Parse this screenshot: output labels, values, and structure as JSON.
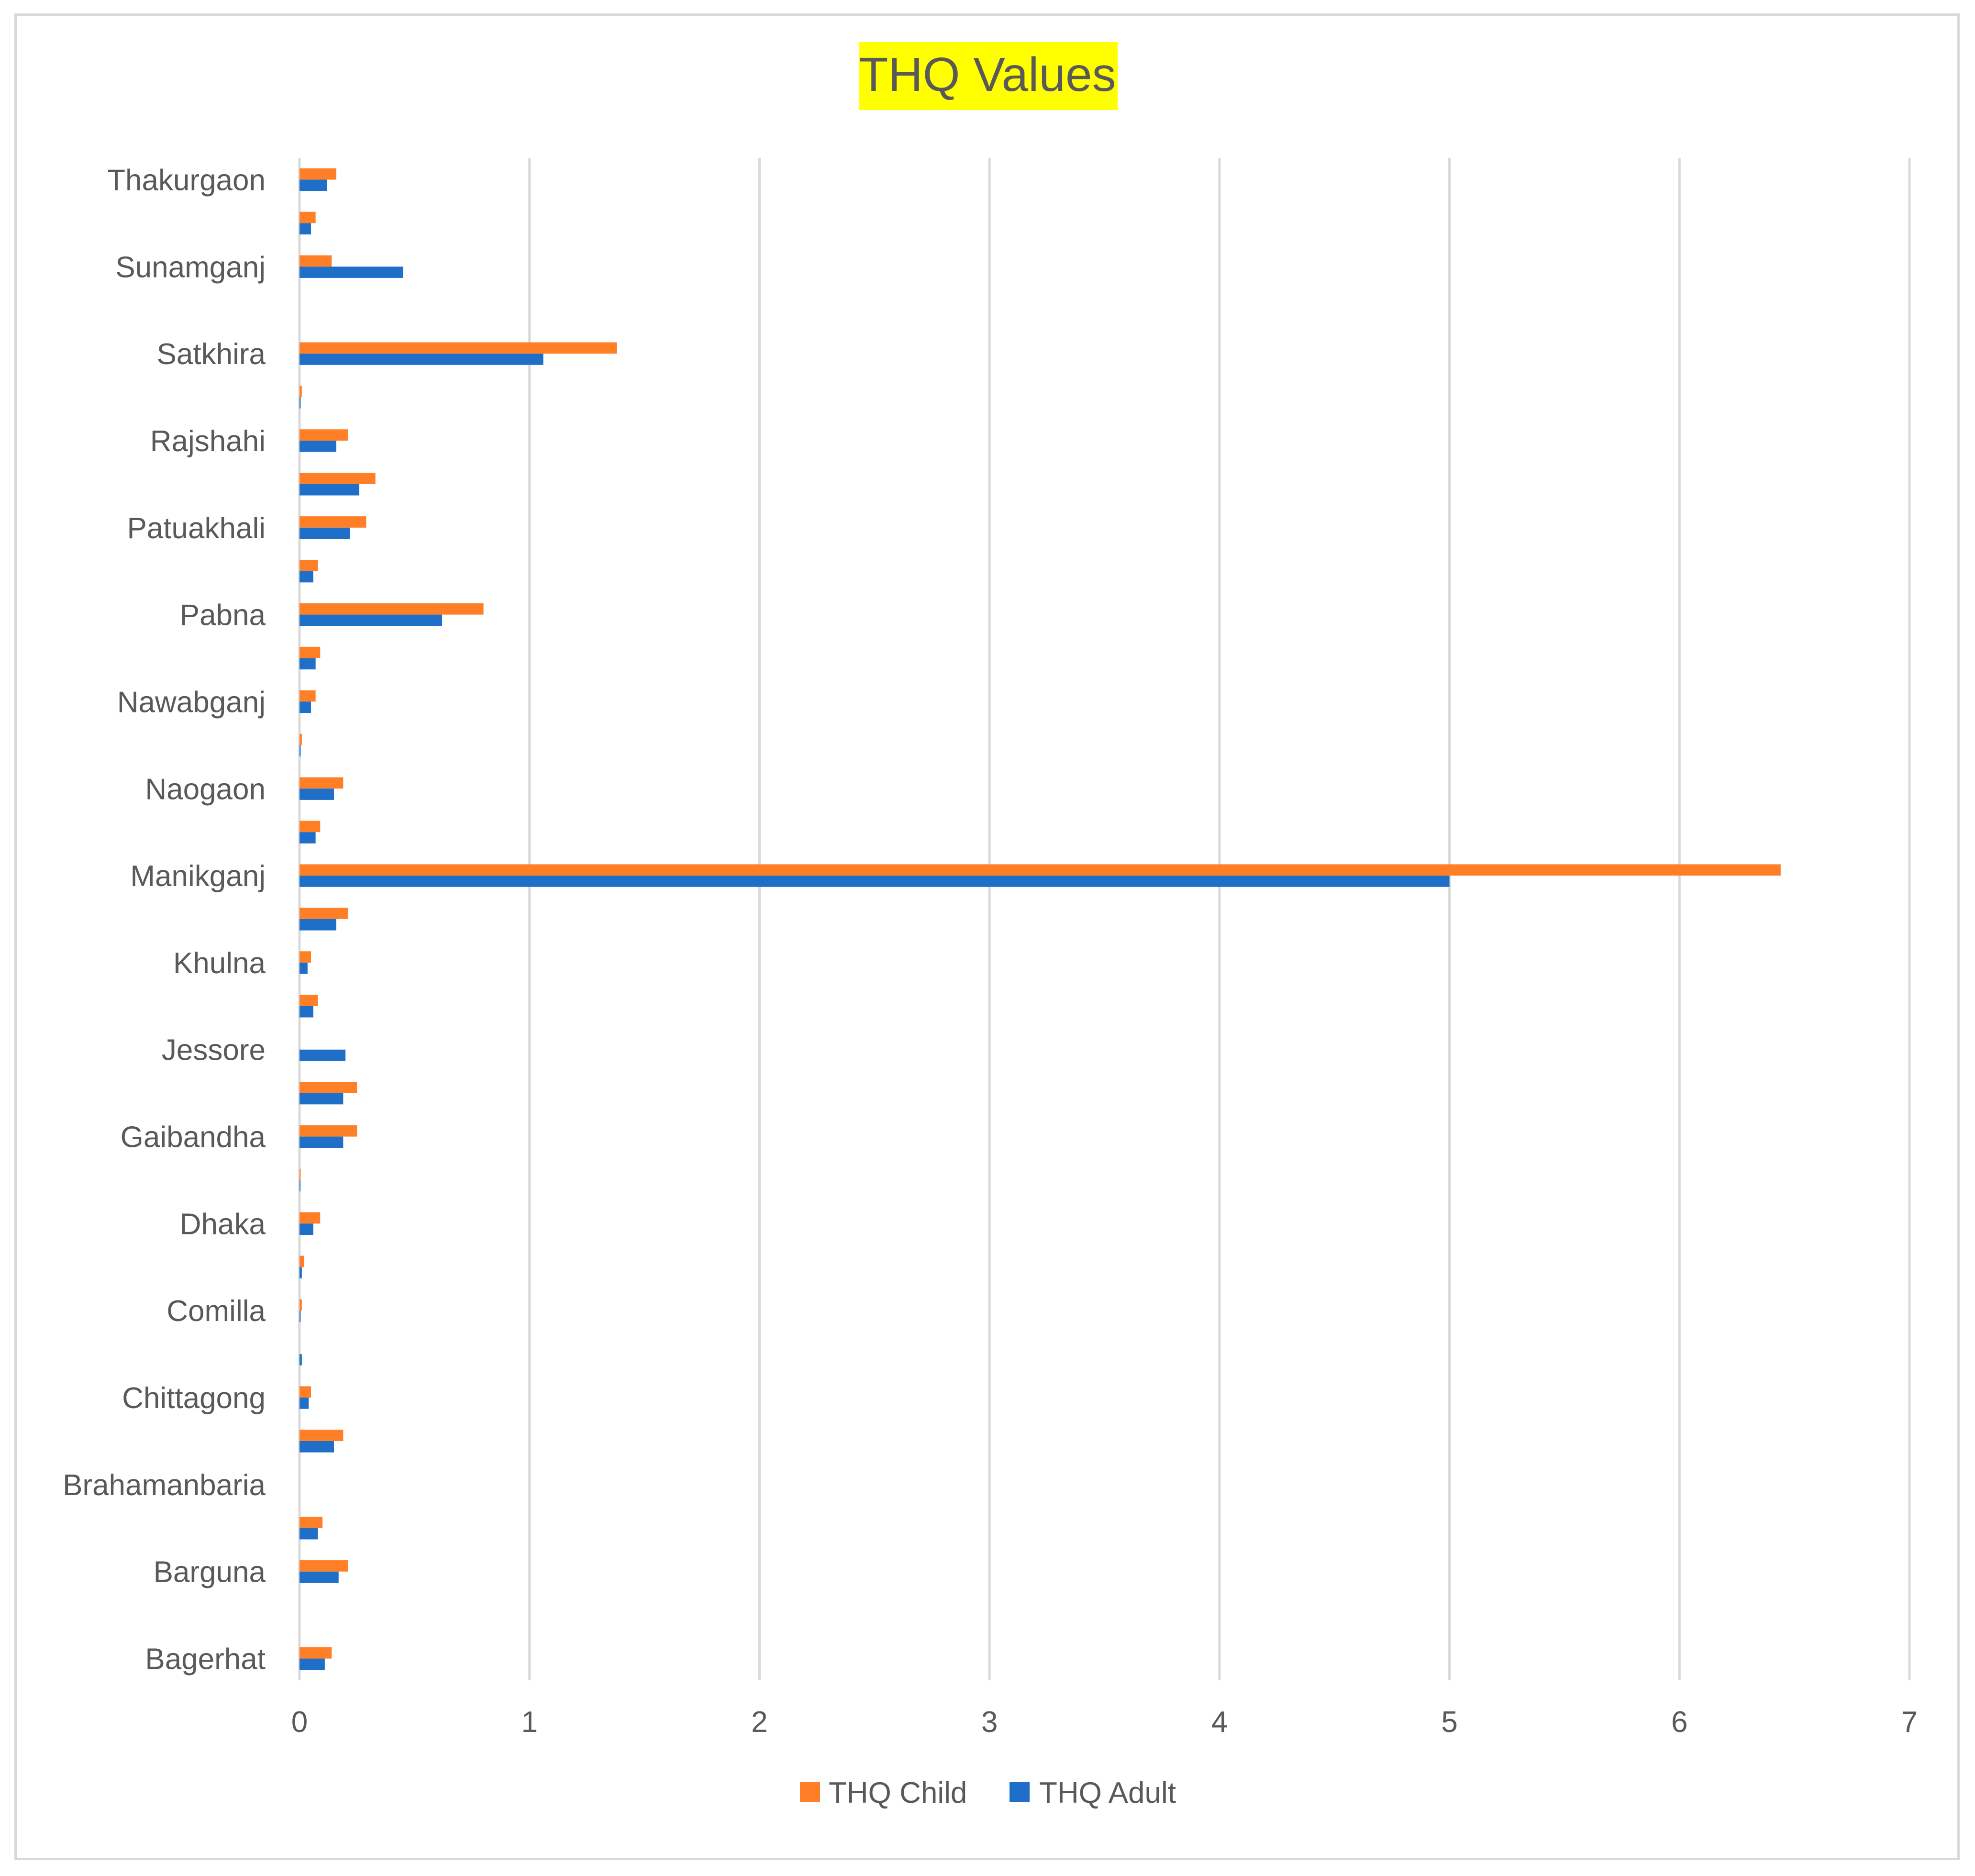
{
  "chart_data": {
    "type": "bar",
    "orientation": "horizontal",
    "title": "THQ Values",
    "title_highlight": "#ffff00",
    "xlim": [
      0,
      7
    ],
    "xticks": [
      "0",
      "1",
      "2",
      "3",
      "4",
      "5",
      "6",
      "7"
    ],
    "grid": "vertical",
    "legend_position": "bottom",
    "category_labels": [
      "Thakurgaon",
      "",
      "Sunamganj",
      "",
      "Satkhira",
      "",
      "Rajshahi",
      "",
      "Patuakhali",
      "",
      "Pabna",
      "",
      "Nawabganj",
      "",
      "Naogaon",
      "",
      "Manikganj",
      "",
      "Khulna",
      "",
      "Jessore",
      "",
      "Gaibandha",
      "",
      "Dhaka",
      "",
      "Comilla",
      "",
      "Chittagong",
      "",
      "Brahamanbaria",
      "",
      "Barguna",
      "",
      "Bagerhat"
    ],
    "series": [
      {
        "name": "THQ Child",
        "color": "#ff7f27",
        "values": [
          0.16,
          0.07,
          0.14,
          0,
          1.38,
          0.01,
          0.21,
          0.33,
          0.29,
          0.08,
          0.8,
          0.09,
          0.07,
          0.01,
          0.19,
          0.09,
          6.44,
          0.21,
          0.05,
          0.08,
          0,
          0.25,
          0.25,
          0.005,
          0.09,
          0.02,
          0.01,
          0,
          0.05,
          0.19,
          0,
          0.1,
          0.21,
          0,
          0.14
        ]
      },
      {
        "name": "THQ Adult",
        "color": "#1f6fc8",
        "values": [
          0.12,
          0.05,
          0.45,
          0,
          1.06,
          0.005,
          0.16,
          0.26,
          0.22,
          0.06,
          0.62,
          0.07,
          0.05,
          0.005,
          0.15,
          0.07,
          5.0,
          0.16,
          0.035,
          0.06,
          0.2,
          0.19,
          0.19,
          0.003,
          0.06,
          0.01,
          0.005,
          0.01,
          0.04,
          0.15,
          0,
          0.08,
          0.17,
          0,
          0.11
        ]
      }
    ]
  }
}
